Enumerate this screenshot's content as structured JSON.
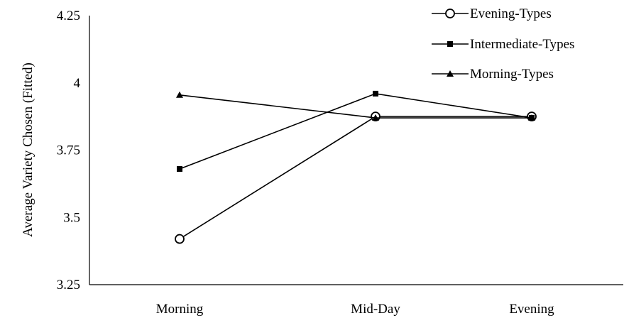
{
  "chart_data": {
    "type": "line",
    "categories": [
      "Morning",
      "Mid-Day",
      "Evening"
    ],
    "ylabel": "Average Variety Chosen (Fitted)",
    "ylim": [
      3.25,
      4.25
    ],
    "yticks": [
      "3.25",
      "3.5",
      "3.75",
      "4",
      "4.25"
    ],
    "yticks_values": [
      3.25,
      3.5,
      3.75,
      4.0,
      4.25
    ],
    "grid": false,
    "legend_position": "top-right",
    "series": [
      {
        "name": "Evening-Types",
        "marker": "circle-open",
        "values": [
          3.42,
          3.875,
          3.875
        ]
      },
      {
        "name": "Intermediate-Types",
        "marker": "square",
        "values": [
          3.68,
          3.96,
          3.87
        ]
      },
      {
        "name": "Morning-Types",
        "marker": "triangle",
        "values": [
          3.955,
          3.87,
          3.87
        ]
      }
    ],
    "color": "#000000"
  }
}
